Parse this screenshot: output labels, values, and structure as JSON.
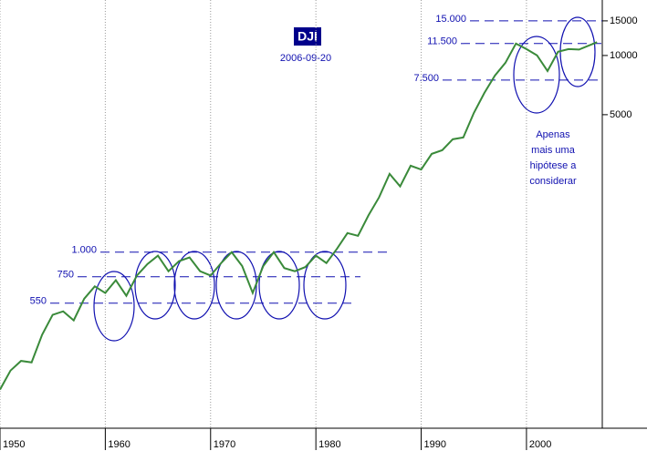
{
  "chart_data": {
    "type": "line",
    "title": "DJI",
    "subtitle": "2006-09-20",
    "log_scale": true,
    "grid": true,
    "x": [
      1950,
      1951,
      1952,
      1953,
      1954,
      1955,
      1956,
      1957,
      1958,
      1959,
      1960,
      1961,
      1962,
      1963,
      1964,
      1965,
      1966,
      1967,
      1968,
      1969,
      1970,
      1971,
      1972,
      1973,
      1974,
      1975,
      1976,
      1977,
      1978,
      1979,
      1980,
      1981,
      1982,
      1983,
      1984,
      1985,
      1986,
      1987,
      1988,
      1989,
      1990,
      1991,
      1992,
      1993,
      1994,
      1995,
      1996,
      1997,
      1998,
      1999,
      2000,
      2001,
      2002,
      2003,
      2004,
      2005,
      2006.7
    ],
    "series": [
      {
        "color": "#3a8a3a",
        "values": [
          200,
          250,
          280,
          275,
          380,
          480,
          500,
          450,
          580,
          670,
          620,
          720,
          600,
          760,
          870,
          960,
          800,
          900,
          940,
          800,
          760,
          880,
          1000,
          850,
          620,
          850,
          1000,
          830,
          800,
          840,
          960,
          880,
          1040,
          1250,
          1210,
          1540,
          1900,
          2500,
          2160,
          2750,
          2630,
          3160,
          3300,
          3750,
          3830,
          5100,
          6450,
          7900,
          9180,
          11500,
          10780,
          10020,
          8340,
          10450,
          10780,
          10720,
          11680
        ]
      }
    ],
    "xlim": [
      1950,
      2007.2
    ],
    "ylim": [
      130,
      19150
    ],
    "xticks": [
      1950,
      1960,
      1970,
      1980,
      1990,
      2000
    ],
    "yticks": [
      5000,
      10000,
      15000
    ],
    "levels": [
      {
        "value": 15000,
        "label": "15.000"
      },
      {
        "value": 11500,
        "label": "11.500"
      },
      {
        "value": 7500,
        "label": "7.500"
      },
      {
        "value": 1000,
        "label": "1.000"
      },
      {
        "value": 750,
        "label": "750"
      },
      {
        "value": 550,
        "label": "550"
      }
    ],
    "annotation": [
      "Apenas",
      "mais uma",
      "hipótese a",
      "considerar"
    ]
  }
}
